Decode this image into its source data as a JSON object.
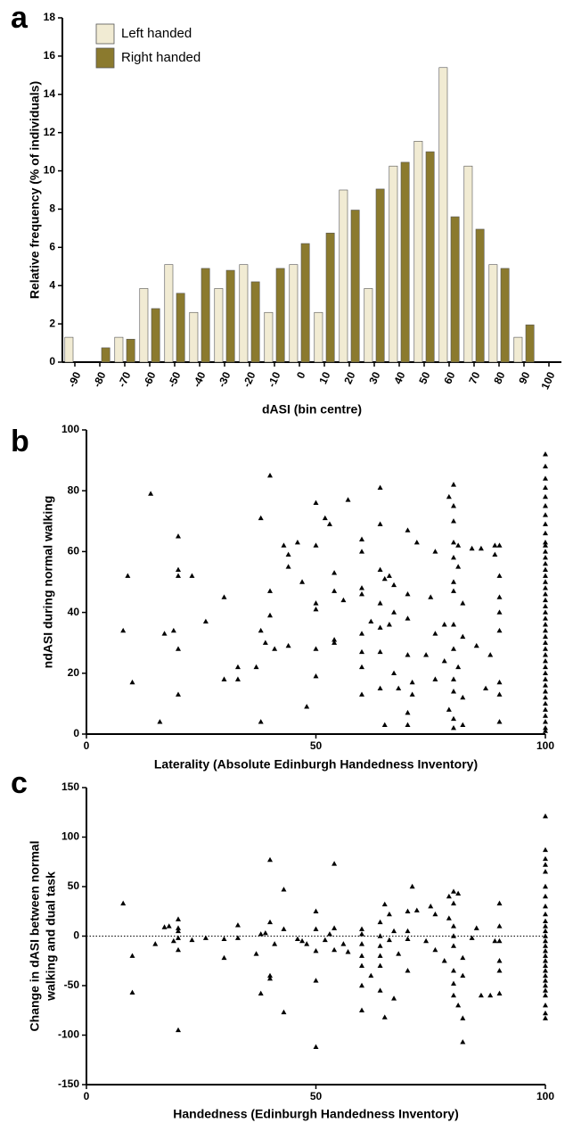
{
  "chart_data": [
    {
      "type": "bar",
      "panel_label": "a",
      "ylabel": "Relative frequency (% of individuals)",
      "xlabel": "dASI (bin centre)",
      "categories": [
        "-90",
        "-80",
        "-70",
        "-60",
        "-50",
        "-40",
        "-30",
        "-20",
        "-10",
        "0",
        "10",
        "20",
        "30",
        "40",
        "50",
        "60",
        "70",
        "80",
        "90",
        "100"
      ],
      "series": [
        {
          "name": "Left handed",
          "color": "#f1ebd3",
          "values": [
            1.3,
            0,
            1.3,
            3.85,
            5.1,
            2.6,
            3.85,
            5.1,
            2.6,
            5.1,
            2.6,
            9.0,
            3.85,
            10.25,
            11.55,
            15.4,
            10.25,
            5.1,
            1.3,
            null
          ]
        },
        {
          "name": "Right handed",
          "color": "#8b7a2e",
          "values": [
            0,
            0.75,
            1.2,
            2.8,
            3.6,
            4.9,
            4.8,
            4.2,
            4.9,
            6.2,
            6.75,
            7.95,
            9.05,
            10.45,
            11.0,
            7.6,
            6.95,
            4.9,
            1.95,
            null
          ]
        }
      ],
      "ylim": [
        0,
        18
      ],
      "yticks": [
        0,
        2,
        4,
        6,
        8,
        10,
        12,
        14,
        16,
        18
      ],
      "legend": "upper left"
    },
    {
      "type": "scatter",
      "panel_label": "b",
      "ylabel": "ndASI during normal walking",
      "xlabel": "Laterality (Absolute Edinburgh Handedness Inventory)",
      "color": "#000000",
      "x": [
        8,
        9,
        10,
        14,
        16,
        17,
        19,
        20,
        20,
        20,
        20,
        20,
        23,
        26,
        30,
        30,
        33,
        33,
        37,
        38,
        38,
        38,
        39,
        40,
        40,
        40,
        41,
        43,
        44,
        44,
        44,
        46,
        47,
        48,
        50,
        50,
        50,
        50,
        50,
        50,
        52,
        53,
        54,
        54,
        54,
        54,
        56,
        57,
        60,
        60,
        60,
        60,
        60,
        60,
        60,
        60,
        62,
        64,
        64,
        64,
        64,
        64,
        64,
        64,
        65,
        65,
        66,
        66,
        67,
        67,
        67,
        68,
        70,
        70,
        70,
        70,
        70,
        70,
        71,
        71,
        72,
        74,
        75,
        76,
        76,
        76,
        78,
        78,
        79,
        79,
        80,
        80,
        80,
        80,
        80,
        80,
        80,
        80,
        80,
        80,
        80,
        80,
        80,
        81,
        81,
        81,
        82,
        82,
        82,
        82,
        84,
        85,
        86,
        87,
        88,
        89,
        89,
        90,
        90,
        90,
        90,
        90,
        90,
        90,
        90,
        100,
        100,
        100,
        100,
        100,
        100,
        100,
        100,
        100,
        100,
        100,
        100,
        100,
        100,
        100,
        100,
        100,
        100,
        100,
        100,
        100,
        100,
        100,
        100,
        100,
        100,
        100,
        100,
        100,
        100,
        100,
        100,
        100,
        100,
        100,
        100,
        100,
        100,
        100,
        100,
        100,
        100
      ],
      "values": [
        34,
        52,
        17,
        79,
        4,
        33,
        34,
        65,
        54,
        52,
        28,
        13,
        52,
        37,
        45,
        18,
        22,
        18,
        22,
        71,
        34,
        4,
        30,
        85,
        47,
        39,
        28,
        62,
        59,
        55,
        29,
        63,
        50,
        9,
        76,
        62,
        43,
        41,
        28,
        19,
        71,
        69,
        53,
        47,
        31,
        30,
        44,
        77,
        64,
        60,
        48,
        46,
        33,
        27,
        22,
        13,
        37,
        81,
        69,
        54,
        43,
        35,
        27,
        15,
        51,
        3,
        52,
        36,
        49,
        40,
        20,
        15,
        67,
        46,
        38,
        26,
        7,
        3,
        17,
        13,
        63,
        26,
        45,
        60,
        33,
        18,
        24,
        36,
        8,
        78,
        82,
        75,
        70,
        63,
        58,
        50,
        47,
        36,
        28,
        18,
        14,
        5,
        2,
        62,
        55,
        22,
        43,
        32,
        12,
        3,
        61,
        29,
        61,
        15,
        26,
        62,
        59,
        62,
        52,
        45,
        40,
        34,
        17,
        13,
        4,
        92,
        88,
        84,
        81,
        78,
        75,
        72,
        69,
        66,
        63,
        62,
        60,
        58,
        56,
        54,
        52,
        50,
        48,
        46,
        44,
        42,
        40,
        38,
        36,
        34,
        32,
        30,
        28,
        26,
        24,
        22,
        20,
        18,
        16,
        14,
        12,
        10,
        8,
        6,
        4,
        2,
        1
      ],
      "xlim": [
        0,
        100
      ],
      "xticks": [
        0,
        50,
        100
      ],
      "ylim": [
        0,
        100
      ],
      "yticks": [
        0,
        20,
        40,
        60,
        80,
        100
      ]
    },
    {
      "type": "scatter",
      "panel_label": "c",
      "ylabel": [
        "Change in dASI between normal",
        "walking and dual task"
      ],
      "xlabel": "Handedness (Edinburgh Handedness Inventory)",
      "color": "#000000",
      "reference_line": 0,
      "x": [
        8,
        10,
        10,
        15,
        17,
        18,
        19,
        20,
        20,
        20,
        20,
        20,
        20,
        23,
        26,
        30,
        30,
        33,
        33,
        37,
        38,
        38,
        39,
        40,
        40,
        40,
        40,
        41,
        43,
        43,
        43,
        46,
        47,
        48,
        50,
        50,
        50,
        50,
        50,
        52,
        53,
        54,
        54,
        54,
        56,
        57,
        60,
        60,
        60,
        60,
        60,
        60,
        60,
        62,
        64,
        64,
        64,
        64,
        64,
        64,
        65,
        65,
        66,
        66,
        67,
        67,
        68,
        70,
        70,
        70,
        70,
        71,
        72,
        74,
        75,
        76,
        76,
        78,
        79,
        79,
        80,
        80,
        80,
        80,
        80,
        80,
        80,
        80,
        81,
        81,
        82,
        82,
        82,
        82,
        84,
        85,
        86,
        88,
        89,
        90,
        90,
        90,
        90,
        90,
        90,
        100,
        100,
        100,
        100,
        100,
        100,
        100,
        100,
        100,
        100,
        100,
        100,
        100,
        100,
        100,
        100,
        100,
        100,
        100,
        100,
        100,
        100,
        100,
        100,
        100,
        100,
        100,
        100
      ],
      "values": [
        33,
        -20,
        -57,
        -8,
        9,
        10,
        -5,
        17,
        8,
        5,
        -2,
        -14,
        -95,
        -4,
        -2,
        -3,
        -22,
        -2,
        11,
        -18,
        2,
        -58,
        3,
        77,
        14,
        -40,
        -43,
        -8,
        47,
        7,
        -77,
        -3,
        -5,
        -8,
        25,
        7,
        -15,
        -45,
        -112,
        -4,
        2,
        73,
        8,
        -14,
        -8,
        -16,
        7,
        2,
        -8,
        -20,
        -30,
        -50,
        -75,
        -40,
        14,
        0,
        -10,
        -20,
        -30,
        -55,
        32,
        -82,
        22,
        -4,
        5,
        -63,
        -18,
        25,
        5,
        -3,
        -35,
        50,
        26,
        -5,
        30,
        -14,
        22,
        -25,
        18,
        40,
        45,
        33,
        10,
        0,
        -10,
        -35,
        -48,
        -60,
        -70,
        43,
        -22,
        -40,
        -83,
        -107,
        -2,
        8,
        -60,
        -60,
        -5,
        33,
        10,
        -5,
        -25,
        -35,
        -58,
        121,
        87,
        78,
        72,
        65,
        50,
        40,
        30,
        22,
        15,
        10,
        5,
        0,
        -5,
        -10,
        -15,
        -20,
        -25,
        -30,
        -35,
        -40,
        -45,
        -50,
        -55,
        -60,
        -70,
        -78,
        -83
      ],
      "xlim": [
        0,
        100
      ],
      "xticks": [
        0,
        50,
        100
      ],
      "ylim": [
        -150,
        150
      ],
      "yticks": [
        -150,
        -100,
        -50,
        0,
        50,
        100,
        150
      ]
    }
  ]
}
